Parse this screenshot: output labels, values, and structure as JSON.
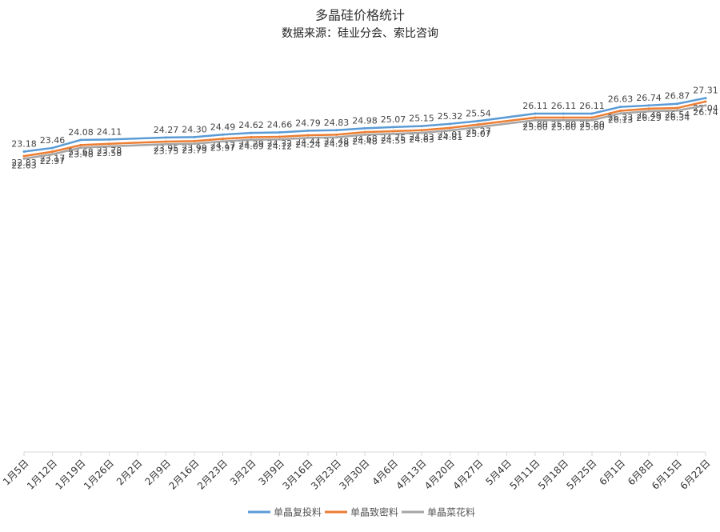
{
  "chart_data": {
    "type": "line",
    "title": "多晶硅价格统计",
    "subtitle": "数据来源：硅业分会、索比咨询",
    "categories": [
      "1月5日",
      "1月12日",
      "1月19日",
      "1月26日",
      "2月2日",
      "2月9日",
      "2月16日",
      "2月23日",
      "3月2日",
      "3月9日",
      "3月16日",
      "3月23日",
      "3月30日",
      "4月6日",
      "4月13日",
      "4月20日",
      "4月27日",
      "5月4日",
      "5月11日",
      "5月18日",
      "5月25日",
      "6月1日",
      "6月8日",
      "6月15日",
      "6月22日"
    ],
    "ylim": [
      0,
      30
    ],
    "connect_gaps": true,
    "legend": "bottom",
    "series": [
      {
        "name": "单晶复投料",
        "color": "#5b9bd5",
        "values": [
          23.18,
          23.46,
          24.08,
          24.11,
          null,
          24.27,
          24.3,
          24.49,
          24.62,
          24.66,
          24.79,
          24.83,
          24.98,
          25.07,
          25.15,
          25.32,
          25.54,
          null,
          26.11,
          26.11,
          26.11,
          26.63,
          26.74,
          26.87,
          27.31
        ],
        "value_labels": [
          "23.18",
          "23.46",
          "24.08",
          "24.11",
          null,
          "24.27",
          "24.30",
          "24.49",
          "24.62",
          "24.66",
          "24.79",
          "24.83",
          "24.98",
          "25.07",
          "25.15",
          "25.32",
          "25.54",
          null,
          "26.11",
          "26.11",
          "26.11",
          "26.63",
          "26.74",
          "26.87",
          "27.31"
        ]
      },
      {
        "name": "单晶致密料",
        "color": "#ed7d31",
        "values": [
          22.83,
          23.17,
          23.68,
          23.78,
          null,
          23.95,
          23.99,
          24.17,
          24.29,
          24.32,
          24.44,
          24.48,
          24.68,
          24.75,
          24.83,
          25.01,
          25.27,
          null,
          25.8,
          25.8,
          25.8,
          26.33,
          26.49,
          26.54,
          27.04
        ],
        "value_labels": [
          "22.83",
          "23.17",
          "23.68",
          "23.78",
          null,
          "23.95",
          "23.99",
          "24.17",
          "24.29",
          "24.32",
          "24.44",
          "24.48",
          "24.68",
          "24.75",
          "24.83",
          "25.01",
          "25.27",
          null,
          "25.80",
          "25.80",
          "25.80",
          "26.33",
          "26.49",
          "26.54",
          "27.04"
        ]
      },
      {
        "name": "单晶菜花料",
        "color": "#a5a5a5",
        "values": [
          22.63,
          22.97,
          23.48,
          23.58,
          null,
          23.75,
          23.79,
          23.97,
          24.09,
          24.12,
          24.24,
          24.28,
          24.48,
          24.55,
          24.63,
          24.81,
          25.07,
          null,
          25.6,
          25.6,
          25.6,
          26.13,
          26.29,
          26.34,
          26.74
        ],
        "value_labels": [
          "22.63",
          "22.97",
          "23.48",
          "23.58",
          null,
          "23.75",
          "23.79",
          "23.97",
          "24.09",
          "24.12",
          "24.24",
          "24.28",
          "24.48",
          "24.55",
          "24.63",
          "24.81",
          "25.07",
          null,
          "25.60",
          "25.60",
          "25.60",
          "26.13",
          "26.29",
          "26.34",
          "26.74"
        ]
      }
    ]
  }
}
